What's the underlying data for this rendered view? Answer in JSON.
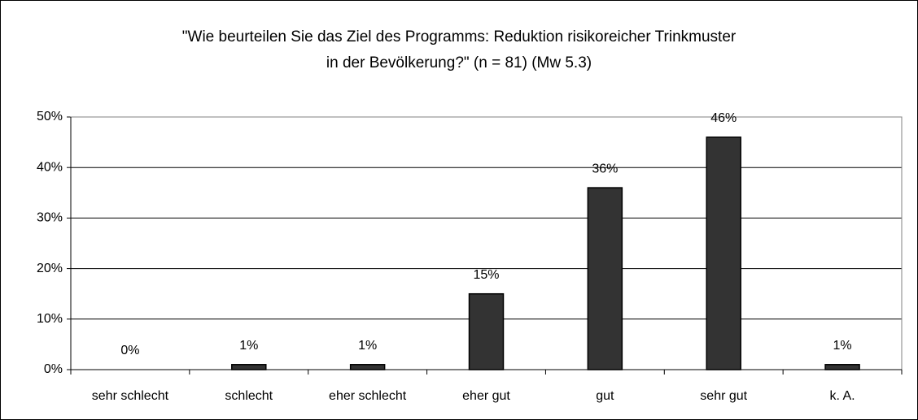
{
  "chart_data": {
    "type": "bar",
    "title": [
      "\"Wie beurteilen Sie das Ziel des Programms: Reduktion risikoreicher Trinkmuster",
      "in der Bevölkerung?\" (n = 81) (Mw 5.3)"
    ],
    "categories": [
      "sehr schlecht",
      "schlecht",
      "eher schlecht",
      "eher gut",
      "gut",
      "sehr gut",
      "k. A."
    ],
    "values": [
      0,
      1,
      1,
      15,
      36,
      46,
      1
    ],
    "value_labels": [
      "0%",
      "1%",
      "1%",
      "15%",
      "36%",
      "46%",
      "1%"
    ],
    "color": "#333333",
    "ylim": [
      0,
      50
    ],
    "yticks": [
      {
        "value": 0,
        "label": "0%"
      },
      {
        "value": 10,
        "label": "10%"
      },
      {
        "value": 20,
        "label": "20%"
      },
      {
        "value": 30,
        "label": "30%"
      },
      {
        "value": 40,
        "label": "40%"
      },
      {
        "value": 50,
        "label": "50%"
      }
    ],
    "grid": true
  }
}
